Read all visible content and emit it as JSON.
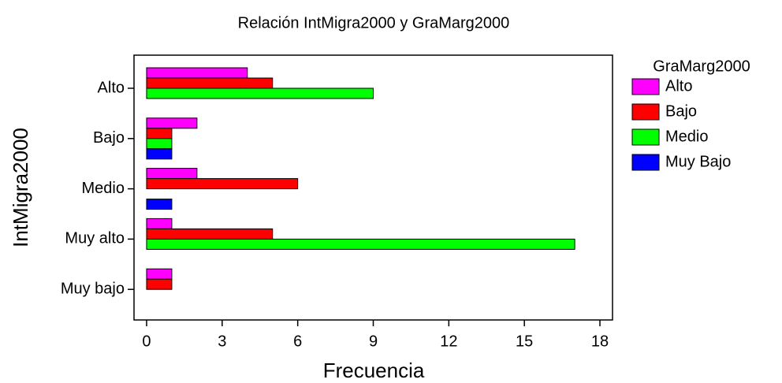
{
  "chart_data": {
    "type": "barh",
    "title": "Relación IntMigra2000 y GraMarg2000",
    "x_label": "Frecuencia",
    "y_label": "IntMigra2000",
    "legend_title": "GraMarg2000",
    "legend": "right",
    "categories": [
      "Alto",
      "Bajo",
      "Medio",
      "Muy alto",
      "Muy bajo"
    ],
    "series": [
      {
        "name": "Alto",
        "color": "#ff00ff",
        "values": [
          4,
          2,
          2,
          1,
          1
        ]
      },
      {
        "name": "Bajo",
        "color": "#ff0000",
        "values": [
          5,
          1,
          6,
          5,
          1
        ]
      },
      {
        "name": "Medio",
        "color": "#00ff00",
        "values": [
          9,
          1,
          0,
          17,
          0
        ]
      },
      {
        "name": "Muy Bajo",
        "color": "#0000ff",
        "values": [
          0,
          1,
          1,
          0,
          0
        ]
      }
    ],
    "xlim": [
      -0.5,
      18.5
    ],
    "xticks": [
      0,
      3,
      6,
      9,
      12,
      15,
      18
    ]
  }
}
